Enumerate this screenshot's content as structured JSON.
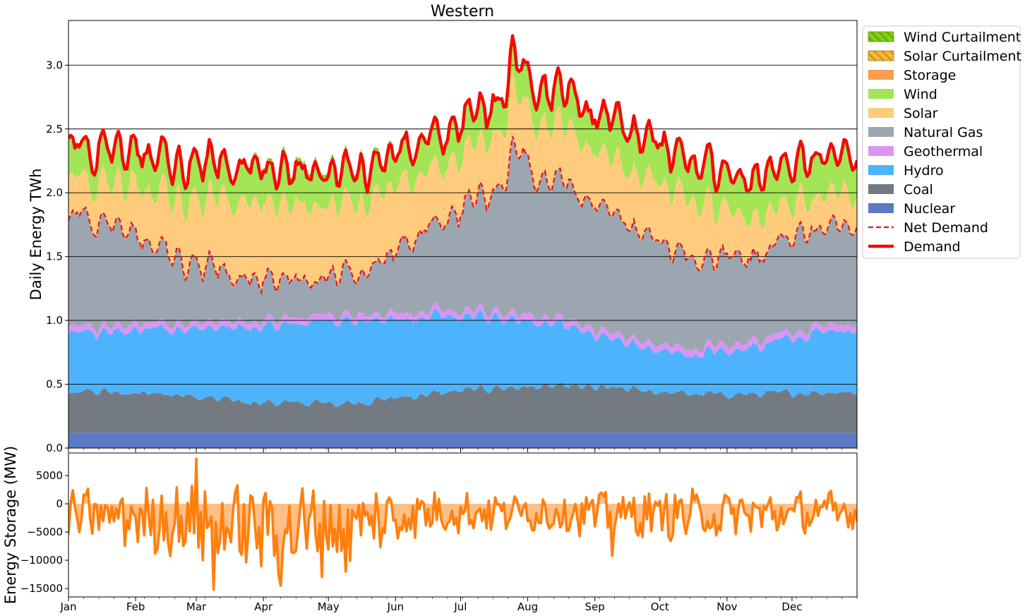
{
  "chart_data": [
    {
      "type": "area",
      "title": "Western",
      "ylabel": "Daily Energy TWh",
      "ylim": [
        0,
        3.35
      ],
      "yticks": [
        "0.0",
        "0.5",
        "1.0",
        "1.5",
        "2.0",
        "2.5",
        "3.0"
      ],
      "grid": "horizontal",
      "legend_position": "outside-top-right",
      "x_months": [
        "Jan",
        "Feb",
        "Mar",
        "Apr",
        "May",
        "Jun",
        "Jul",
        "Aug",
        "Sep",
        "Oct",
        "Nov",
        "Dec"
      ],
      "series_order_bottom_to_top": [
        "Nuclear",
        "Coal",
        "Hydro",
        "Geothermal",
        "Natural Gas",
        "Solar",
        "Wind",
        "Storage",
        "Solar Curtailment",
        "Wind Curtailment"
      ],
      "monthly_values_twh": {
        "Nuclear": [
          0.12,
          0.12,
          0.12,
          0.12,
          0.12,
          0.12,
          0.12,
          0.12,
          0.12,
          0.12,
          0.12,
          0.12
        ],
        "Coal": [
          0.33,
          0.3,
          0.25,
          0.23,
          0.24,
          0.3,
          0.35,
          0.36,
          0.34,
          0.3,
          0.3,
          0.32
        ],
        "Hydro": [
          0.47,
          0.52,
          0.57,
          0.62,
          0.65,
          0.6,
          0.55,
          0.48,
          0.35,
          0.3,
          0.38,
          0.48
        ],
        "Geothermal": [
          0.05,
          0.05,
          0.05,
          0.05,
          0.05,
          0.05,
          0.05,
          0.05,
          0.05,
          0.05,
          0.05,
          0.05
        ],
        "Natural Gas": [
          0.85,
          0.55,
          0.38,
          0.3,
          0.3,
          0.65,
          0.95,
          1.05,
          0.9,
          0.7,
          0.7,
          0.75
        ],
        "Solar": [
          0.3,
          0.45,
          0.6,
          0.6,
          0.55,
          0.45,
          0.45,
          0.42,
          0.45,
          0.45,
          0.3,
          0.25
        ],
        "Wind": [
          0.25,
          0.28,
          0.28,
          0.25,
          0.25,
          0.25,
          0.25,
          0.26,
          0.3,
          0.3,
          0.3,
          0.3
        ],
        "Storage": [
          0.0,
          0.0,
          0.0,
          0.0,
          0.0,
          0.0,
          0.0,
          0.0,
          0.0,
          0.0,
          0.0,
          0.0
        ],
        "Solar Curtailment": [
          0.0,
          0.0,
          0.01,
          0.02,
          0.02,
          0.01,
          0.0,
          0.0,
          0.0,
          0.0,
          0.0,
          0.0
        ],
        "Wind Curtailment": [
          0.0,
          0.0,
          0.01,
          0.02,
          0.02,
          0.01,
          0.0,
          0.0,
          0.0,
          0.0,
          0.0,
          0.0
        ]
      },
      "monthly_net_demand_twh": [
        1.85,
        1.5,
        1.4,
        1.35,
        1.35,
        1.7,
        2.0,
        2.1,
        1.75,
        1.5,
        1.55,
        1.7
      ],
      "monthly_demand_twh": [
        2.4,
        2.25,
        2.22,
        2.15,
        2.15,
        2.45,
        2.65,
        2.8,
        2.5,
        2.25,
        2.15,
        2.35
      ],
      "peak_demand": {
        "month": "Aug",
        "value": 3.05
      },
      "legend": [
        {
          "label": "Wind Curtailment",
          "color": "#7fcf14",
          "style": "hatch"
        },
        {
          "label": "Solar Curtailment",
          "color": "#f5b731",
          "style": "hatch"
        },
        {
          "label": "Storage",
          "color": "#f79e51",
          "style": "patch"
        },
        {
          "label": "Wind",
          "color": "#a3e556",
          "style": "patch"
        },
        {
          "label": "Solar",
          "color": "#fecc7c",
          "style": "patch"
        },
        {
          "label": "Natural Gas",
          "color": "#9ba6b0",
          "style": "patch"
        },
        {
          "label": "Geothermal",
          "color": "#da95f4",
          "style": "patch"
        },
        {
          "label": "Hydro",
          "color": "#4eb3fd",
          "style": "patch"
        },
        {
          "label": "Coal",
          "color": "#737a81",
          "style": "patch"
        },
        {
          "label": "Nuclear",
          "color": "#5b79c5",
          "style": "patch"
        },
        {
          "label": "Net Demand",
          "color": "#e8161b",
          "style": "dashed-line"
        },
        {
          "label": "Demand",
          "color": "#f50a05",
          "style": "line"
        }
      ]
    },
    {
      "type": "line",
      "ylabel": "Energy Storage (MW)",
      "ylim": [
        -16500,
        9000
      ],
      "yticks": [
        "5000",
        "0",
        "−5000",
        "−10000",
        "−15000"
      ],
      "xlabels": [
        "Jan",
        "Feb",
        "Mar",
        "Apr",
        "May",
        "Jun",
        "Jul",
        "Aug",
        "Sep",
        "Oct",
        "Nov",
        "Dec"
      ],
      "color": "#ff7f0e",
      "fill_color": "#ffbf86",
      "monthly_typical_mw": [
        -2000,
        -3000,
        -4000,
        -4500,
        -3500,
        -1500,
        -1500,
        -1500,
        -1800,
        -2000,
        -1800,
        -1500
      ],
      "extremes_mw": [
        {
          "month": "Mar",
          "value": 8000,
          "kind": "max"
        },
        {
          "month": "Mar",
          "value": -15200,
          "kind": "min"
        },
        {
          "month": "Apr",
          "value": -14500,
          "kind": "min"
        },
        {
          "month": "May",
          "value": -12000,
          "kind": "min"
        },
        {
          "month": "Sep",
          "value": -9200,
          "kind": "min"
        }
      ]
    }
  ]
}
